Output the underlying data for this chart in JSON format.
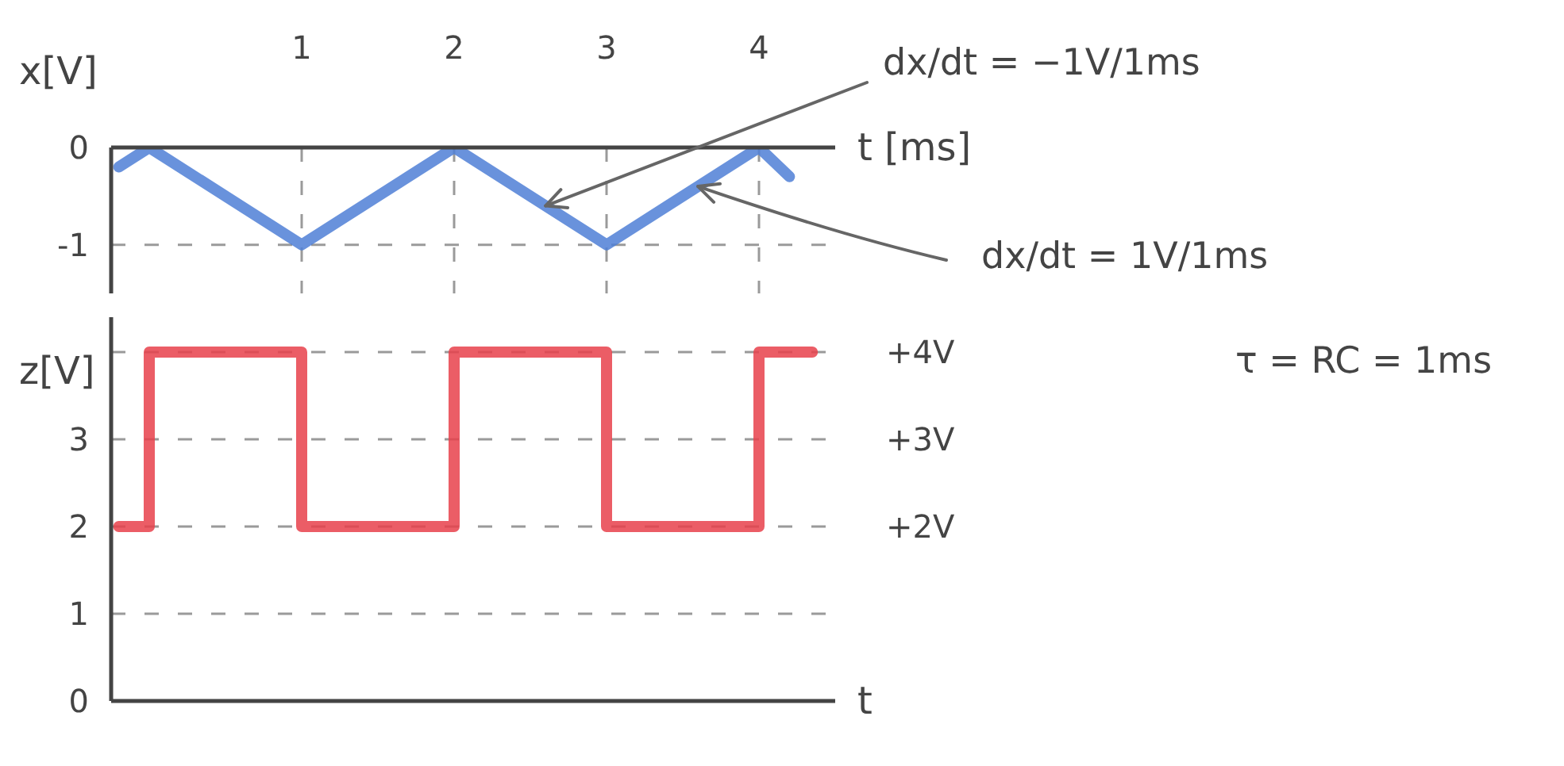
{
  "chart_data": [
    {
      "type": "line",
      "ylabel": "x[V]",
      "xlabel": "t [ms]",
      "x": [
        -0.2,
        0,
        1,
        2,
        3,
        4,
        4.2
      ],
      "values": [
        -0.2,
        0,
        -1,
        0,
        -1,
        0,
        -0.3
      ],
      "color": "#4f7fd6",
      "xlim": [
        -0.25,
        4.5
      ],
      "xticks": [
        1,
        2,
        3,
        4
      ],
      "ylim": [
        -1.5,
        0
      ],
      "yticks": [
        -1,
        0
      ],
      "grid": true,
      "marker": "none",
      "line_style": "solid",
      "annotations": [
        {
          "text": "dx/dt = −1V/1ms",
          "x": 2.6,
          "y": -0.6
        },
        {
          "text": "dx/dt = 1V/1ms",
          "x": 3.6,
          "y": -0.4
        }
      ]
    },
    {
      "type": "step",
      "ylabel": "z[V]",
      "xlabel": "t",
      "x": [
        -0.2,
        0,
        1,
        2,
        3,
        4,
        4.35
      ],
      "values": [
        2,
        4,
        2,
        4,
        2,
        4,
        4
      ],
      "color": "#e8414b",
      "xlim": [
        -0.25,
        4.5
      ],
      "xticks": [
        1,
        2,
        3,
        4
      ],
      "tick_labels": "y",
      "ylim": [
        0,
        4.4
      ],
      "yticks": [
        0,
        1,
        2,
        3
      ],
      "y2lim": [
        0,
        4.4
      ],
      "y2ticks": [
        {
          "value": 2,
          "label": "+2V"
        },
        {
          "value": 3,
          "label": "+3V"
        },
        {
          "value": 4,
          "label": "+4V"
        }
      ],
      "grid": true,
      "marker": "none",
      "line_style": "solid",
      "annotations": [
        "τ = RC = 1ms"
      ]
    }
  ]
}
